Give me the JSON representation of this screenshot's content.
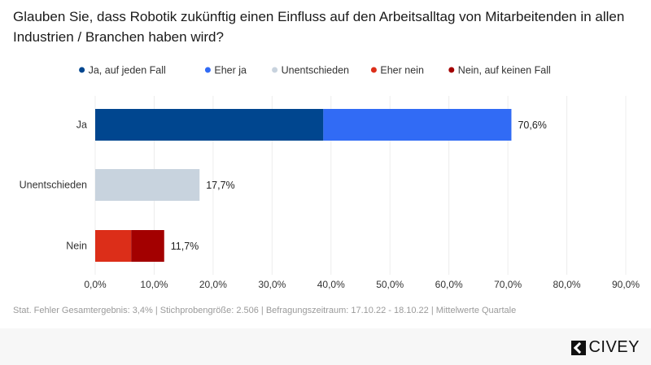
{
  "chart_data": {
    "type": "bar",
    "orientation": "horizontal",
    "stacked": true,
    "title": "Glauben Sie, dass Robotik zukünftig einen Einfluss auf den Arbeitsalltag von Mitarbeitenden in allen Industrien / Branchen haben wird?",
    "categories": [
      "Ja",
      "Unentschieden",
      "Nein"
    ],
    "series": [
      {
        "name": "Ja, auf jeden Fall",
        "color": "#00468f",
        "values": [
          38.7,
          0,
          0
        ]
      },
      {
        "name": "Eher ja",
        "color": "#316bf5",
        "values": [
          31.9,
          0,
          0
        ]
      },
      {
        "name": "Unentschieden",
        "color": "#c8d3de",
        "values": [
          0,
          17.7,
          0
        ]
      },
      {
        "name": "Eher nein",
        "color": "#dc2e19",
        "values": [
          0,
          0,
          6.1
        ]
      },
      {
        "name": "Nein, auf keinen Fall",
        "color": "#a30000",
        "values": [
          0,
          0,
          5.6
        ]
      }
    ],
    "totals_labels": [
      "70,6%",
      "17,7%",
      "11,7%"
    ],
    "xlim": [
      0,
      90
    ],
    "xticks": [
      "0,0%",
      "10,0%",
      "20,0%",
      "30,0%",
      "40,0%",
      "50,0%",
      "60,0%",
      "70,0%",
      "80,0%",
      "90,0%"
    ],
    "grid": true,
    "legend_position": "top-center"
  },
  "footer": {
    "note": "Stat. Fehler Gesamtergebnis: 3,4% | Stichprobengröße: 2.506 | Befragungszeitraum: 17.10.22 - 18.10.22 | Mittelwerte Quartale",
    "logo": "CIVEY"
  }
}
